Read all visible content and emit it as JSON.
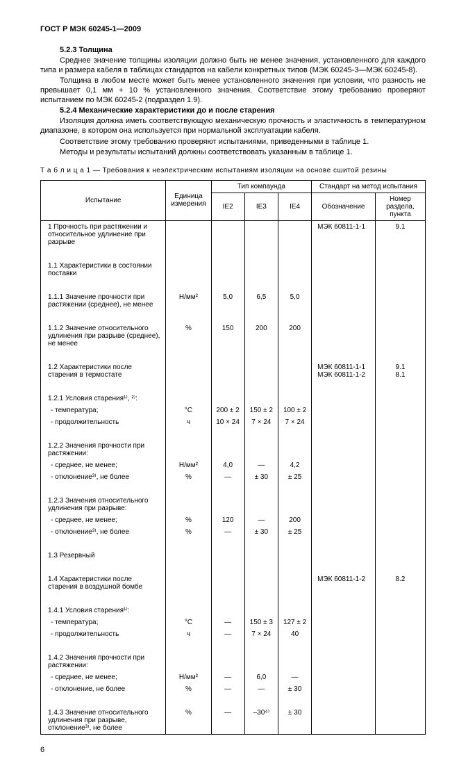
{
  "doc_header": "ГОСТ Р МЭК 60245-1—2009",
  "sections": {
    "s523_title": "5.2.3  Толщина",
    "s523_p1": "Среднее значение толщины изоляции должно быть не менее значения, установленного для каждого типа и размера кабеля в таблицах стандартов на кабели конкретных типов (МЭК 60245-3—МЭК 60245-8).",
    "s523_p2": "Толщина в любом месте может быть менее установленного значения при условии, что разность не превышает 0,1 мм + 10 % установленного значения. Соответствие этому требованию проверяют испытанием по МЭК 60245-2 (подраздел 1.9).",
    "s524_title": "5.2.4  Механические характеристики до и после старения",
    "s524_p1": "Изоляция должна иметь соответствующую механическую прочность и эластичность в температурном диапазоне, в котором она используется при нормальной эксплуатации кабеля.",
    "s524_p2": "Соответствие этому требованию проверяют испытаниями, приведенными в таблице 1.",
    "s524_p3": "Методы и результаты испытаний должны соответствовать указанным в таблице 1."
  },
  "table_caption": "Т а б л и ц а   1 — Требования к неэлектрическим испытаниям изоляции на основе сшитой резины",
  "table_head": {
    "test": "Испытание",
    "unit": "Единица измерения",
    "compound": "Тип компаунда",
    "ie2": "IE2",
    "ie3": "IE3",
    "ie4": "IE4",
    "method": "Стандарт на метод испытания",
    "std": "Обозначение",
    "clause": "Номер раздела, пункта"
  },
  "rows": {
    "r1": {
      "t": "1 Прочность при растяжении и относительное удлинение при разрыве",
      "u": "",
      "a": "",
      "b": "",
      "c": "",
      "s": "МЭК 60811-1-1",
      "cl": "9.1"
    },
    "r11": {
      "t": "1.1 Характеристики в состоянии поставки",
      "u": "",
      "a": "",
      "b": "",
      "c": "",
      "s": "",
      "cl": ""
    },
    "r111": {
      "t": "1.1.1 Значение прочности при растяжении (среднее), не менее",
      "u": "Н/мм²",
      "a": "5,0",
      "b": "6,5",
      "c": "5,0",
      "s": "",
      "cl": ""
    },
    "r112": {
      "t": "1.1.2 Значение относительного удлинения при разрыве (среднее), не менее",
      "u": "%",
      "a": "150",
      "b": "200",
      "c": "200",
      "s": "",
      "cl": ""
    },
    "r12": {
      "t": "1.2 Характеристики после старения в термостате",
      "u": "",
      "a": "",
      "b": "",
      "c": "",
      "s": "МЭК 60811-1-1\nМЭК 60811-1-2",
      "cl": "9.1\n8.1"
    },
    "r121": {
      "t": "1.2.1 Условия старения¹⁾, ²⁾:",
      "u": "",
      "a": "",
      "b": "",
      "c": "",
      "s": "",
      "cl": ""
    },
    "r121a": {
      "t": "- температура;",
      "u": "°С",
      "a": "200 ± 2",
      "b": "150 ± 2",
      "c": "100 ± 2",
      "s": "",
      "cl": ""
    },
    "r121b": {
      "t": "- продолжительность",
      "u": "ч",
      "a": "10 × 24",
      "b": "7 × 24",
      "c": "7 × 24",
      "s": "",
      "cl": ""
    },
    "r122": {
      "t": "1.2.2 Значения прочности при растяжении:",
      "u": "",
      "a": "",
      "b": "",
      "c": "",
      "s": "",
      "cl": ""
    },
    "r122a": {
      "t": "- среднее, не менее;",
      "u": "Н/мм²",
      "a": "4,0",
      "b": "—",
      "c": "4,2",
      "s": "",
      "cl": ""
    },
    "r122b": {
      "t": "- отклонение³⁾, не более",
      "u": "%",
      "a": "—",
      "b": "± 30",
      "c": "± 25",
      "s": "",
      "cl": ""
    },
    "r123": {
      "t": "1.2.3 Значения относительного удлинения при разрыве:",
      "u": "",
      "a": "",
      "b": "",
      "c": "",
      "s": "",
      "cl": ""
    },
    "r123a": {
      "t": "- среднее, не менее;",
      "u": "%",
      "a": "120",
      "b": "—",
      "c": "200",
      "s": "",
      "cl": ""
    },
    "r123b": {
      "t": "- отклонение³⁾, не более",
      "u": "%",
      "a": "—",
      "b": "± 30",
      "c": "± 25",
      "s": "",
      "cl": ""
    },
    "r13": {
      "t": "1.3 Резервный",
      "u": "",
      "a": "",
      "b": "",
      "c": "",
      "s": "",
      "cl": ""
    },
    "r14": {
      "t": "1.4 Характеристики после старения в воздушной бомбе",
      "u": "",
      "a": "",
      "b": "",
      "c": "",
      "s": "МЭК 60811-1-2",
      "cl": "8.2"
    },
    "r141": {
      "t": "1.4.1 Условия старения¹⁾:",
      "u": "",
      "a": "",
      "b": "",
      "c": "",
      "s": "",
      "cl": ""
    },
    "r141a": {
      "t": "- температура;",
      "u": "°С",
      "a": "—",
      "b": "150 ± 3",
      "c": "127 ± 2",
      "s": "",
      "cl": ""
    },
    "r141b": {
      "t": "- продолжительность",
      "u": "ч",
      "a": "—",
      "b": "7 × 24",
      "c": "40",
      "s": "",
      "cl": ""
    },
    "r142": {
      "t": "1.4.2 Значения прочности при растяжении:",
      "u": "",
      "a": "",
      "b": "",
      "c": "",
      "s": "",
      "cl": ""
    },
    "r142a": {
      "t": "- среднее, не менее;",
      "u": "Н/мм²",
      "a": "—",
      "b": "6,0",
      "c": "—",
      "s": "",
      "cl": ""
    },
    "r142b": {
      "t": "- отклонение, не более",
      "u": "%",
      "a": "—",
      "b": "—",
      "c": "± 30",
      "s": "",
      "cl": ""
    },
    "r143": {
      "t": "1.4.3 Значение относительного удлинения при разрыве, отклонение³⁾, не более",
      "u": "%",
      "a": "—",
      "b": "–30⁴⁾",
      "c": "± 30",
      "s": "",
      "cl": ""
    }
  },
  "page_number": "6"
}
